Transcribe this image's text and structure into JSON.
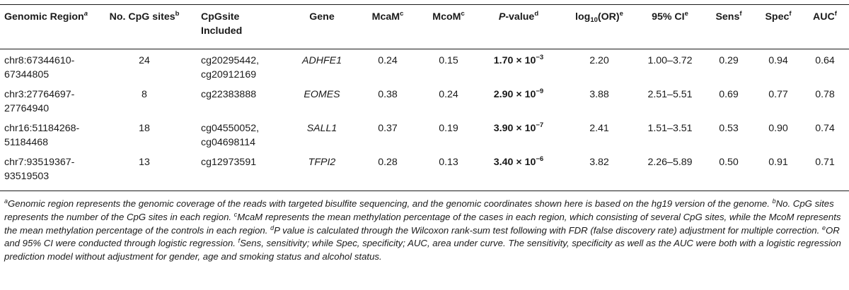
{
  "table": {
    "headers": {
      "region": "Genomic Region",
      "region_sup": "a",
      "sites": "No. CpG sites",
      "sites_sup": "b",
      "cpg_included_line1": "CpGsite",
      "cpg_included_line2": "Included",
      "gene": "Gene",
      "mcam": "McaM",
      "mcam_sup": "c",
      "mcom": "McoM",
      "mcom_sup": "c",
      "pvalue_p": "P",
      "pvalue_rest": "-value",
      "pvalue_sup": "d",
      "log_pre": "log",
      "log_sub": "10",
      "log_post": "(OR)",
      "log_sup": "e",
      "ci": "95% CI",
      "ci_sup": "e",
      "sens": "Sens",
      "sens_sup": "f",
      "spec": "Spec",
      "spec_sup": "f",
      "auc": "AUC",
      "auc_sup": "f"
    },
    "rows": [
      {
        "region_line1": "chr8:67344610-",
        "region_line2": "67344805",
        "sites": "24",
        "cpg_line1": "cg20295442,",
        "cpg_line2": "cg20912169",
        "gene": "ADHFE1",
        "mcam": "0.24",
        "mcom": "0.15",
        "p_mant": "1.70 × 10",
        "p_exp": "−3",
        "log_or": "2.20",
        "ci": "1.00–3.72",
        "sens": "0.29",
        "spec": "0.94",
        "auc": "0.64"
      },
      {
        "region_line1": "chr3:27764697-",
        "region_line2": "27764940",
        "sites": "8",
        "cpg_line1": "cg22383888",
        "cpg_line2": "",
        "gene": "EOMES",
        "mcam": "0.38",
        "mcom": "0.24",
        "p_mant": "2.90 × 10",
        "p_exp": "−9",
        "log_or": "3.88",
        "ci": "2.51–5.51",
        "sens": "0.69",
        "spec": "0.77",
        "auc": "0.78"
      },
      {
        "region_line1": "chr16:51184268-",
        "region_line2": "51184468",
        "sites": "18",
        "cpg_line1": "cg04550052,",
        "cpg_line2": "cg04698114",
        "gene": "SALL1",
        "mcam": "0.37",
        "mcom": "0.19",
        "p_mant": "3.90 × 10",
        "p_exp": "−7",
        "log_or": "2.41",
        "ci": "1.51–3.51",
        "sens": "0.53",
        "spec": "0.90",
        "auc": "0.74"
      },
      {
        "region_line1": "chr7:93519367-",
        "region_line2": "93519503",
        "sites": "13",
        "cpg_line1": "cg12973591",
        "cpg_line2": "",
        "gene": "TFPI2",
        "mcam": "0.28",
        "mcom": "0.13",
        "p_mant": "3.40 × 10",
        "p_exp": "−6",
        "log_or": "3.82",
        "ci": "2.26–5.89",
        "sens": "0.50",
        "spec": "0.91",
        "auc": "0.71"
      }
    ]
  },
  "footnotes": {
    "a_mark": "a",
    "a_text": "Genomic region represents the genomic coverage of the reads with targeted bisulfite sequencing, and the genomic coordinates shown here is based on the hg19 version of the genome.",
    "b_mark": "b",
    "b_text": "No. CpG sites represents the number of the CpG sites in each region.",
    "c_mark": "c",
    "c_text": "McaM represents the mean methylation percentage of the cases in each region, which consisting of several CpG sites, while the McoM represents the mean methylation percentage of the controls in each region.",
    "d_mark": "d",
    "d_text": "P value is calculated through the Wilcoxon rank-sum test following with FDR (false discovery rate) adjustment for multiple correction.",
    "e_mark": "e",
    "e_text": "OR and 95% CI were conducted through logistic regression.",
    "f_mark": "f",
    "f_text": "Sens, sensitivity; while Spec, specificity; AUC, area under curve. The sensitivity, specificity as well as the AUC were both with a logistic regression prediction model without adjustment for gender, age and smoking status and alcohol status."
  }
}
